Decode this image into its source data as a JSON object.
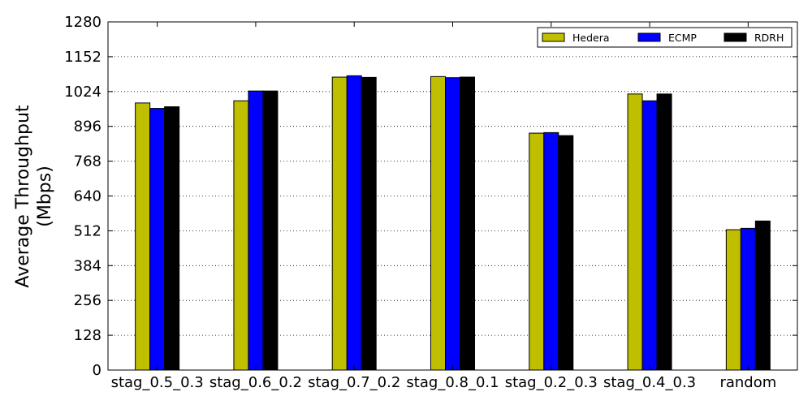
{
  "chart_data": {
    "type": "bar",
    "title": "",
    "xlabel": "",
    "ylabel_line1": "Average Throughput",
    "ylabel_line2": "(Mbps)",
    "ylim": [
      0,
      1280
    ],
    "yticks": [
      0,
      128,
      256,
      384,
      512,
      640,
      768,
      896,
      1024,
      1152,
      1280
    ],
    "grid": "y-dotted",
    "legend_position": "top-right",
    "categories": [
      "stag_0.5_0.3",
      "stag_0.6_0.2",
      "stag_0.7_0.2",
      "stag_0.8_0.1",
      "stag_0.2_0.3",
      "stag_0.4_0.3",
      "random"
    ],
    "series": [
      {
        "name": "Hedera",
        "color": "#bfbf00",
        "values": [
          982,
          990,
          1077,
          1079,
          871,
          1015,
          516
        ]
      },
      {
        "name": "ECMP",
        "color": "#0000ff",
        "values": [
          962,
          1026,
          1082,
          1075,
          873,
          990,
          521
        ]
      },
      {
        "name": "RDRH",
        "color": "#000000",
        "values": [
          968,
          1026,
          1076,
          1077,
          862,
          1015,
          548
        ]
      }
    ]
  }
}
